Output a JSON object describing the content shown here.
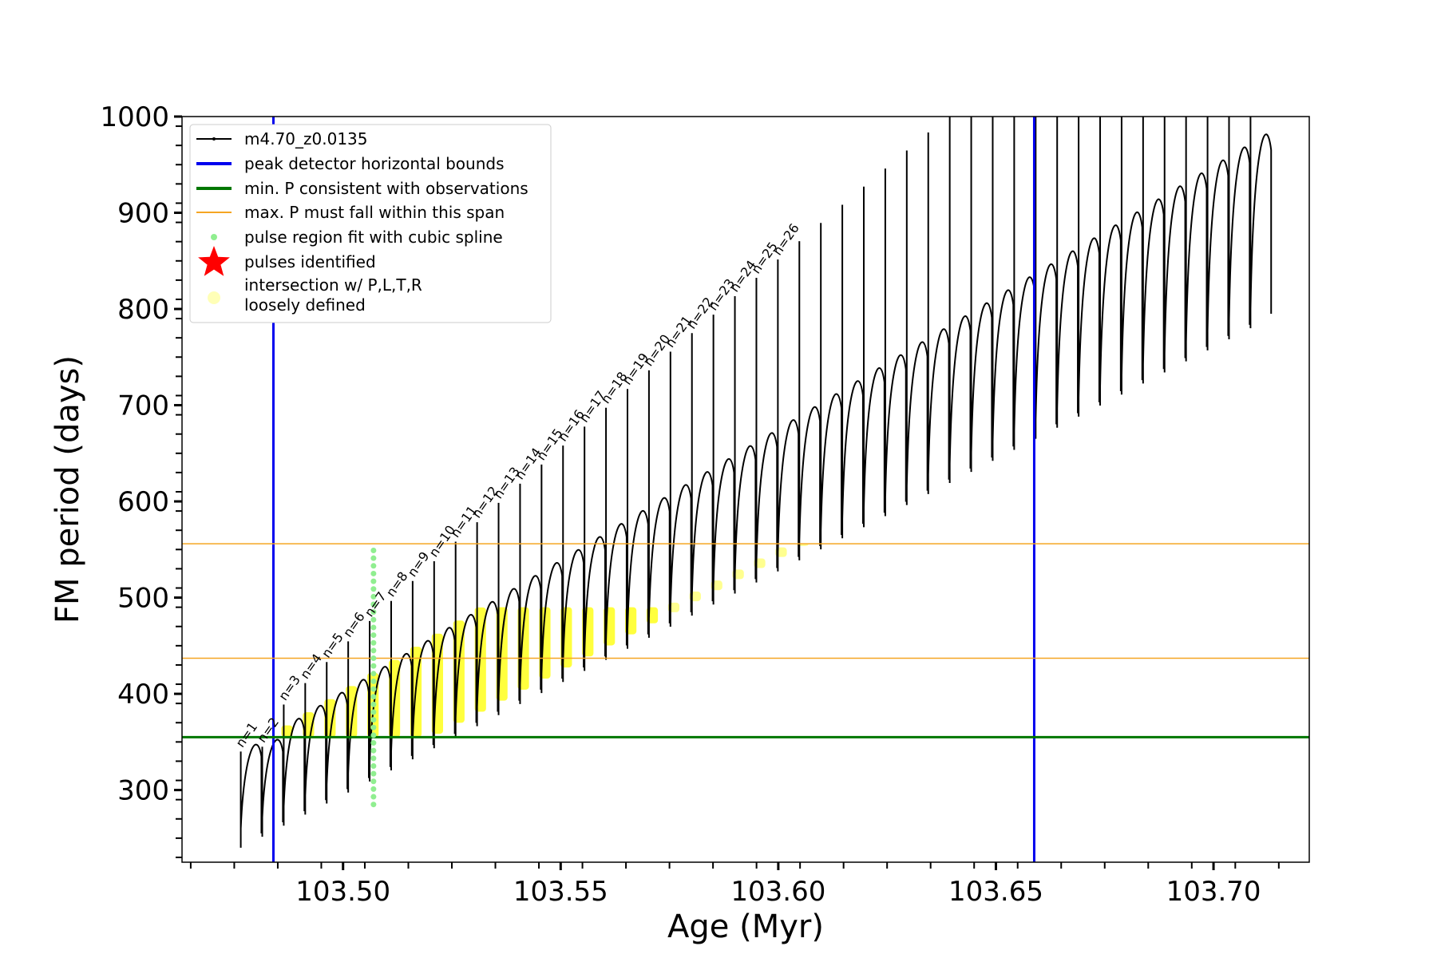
{
  "chart_data": {
    "type": "line",
    "xlabel": "Age (Myr)",
    "ylabel": "FM period (days)",
    "xlim": [
      103.463,
      103.722
    ],
    "ylim": [
      225,
      1000
    ],
    "x_ticks": [
      103.5,
      103.55,
      103.6,
      103.65,
      103.7
    ],
    "x_tick_labels": [
      "103.50",
      "103.55",
      "103.60",
      "103.65",
      "103.70"
    ],
    "y_ticks": [
      300,
      400,
      500,
      600,
      700,
      800,
      900,
      1000
    ],
    "y_tick_labels": [
      "300",
      "400",
      "500",
      "600",
      "700",
      "800",
      "900",
      "1000"
    ],
    "grid": false,
    "legend_position": "top-left",
    "series": [
      {
        "name": "m4.70_z0.0135",
        "type": "line",
        "color": "#000000",
        "description_pulses": {
          "start_age": 103.4765,
          "end_age": 103.7085,
          "count": 48,
          "peak_period_start": 340,
          "peak_period_end": 1000,
          "min_period_start": 240,
          "min_period_end": 780
        }
      },
      {
        "name": "peak detector horizontal bounds",
        "type": "vline",
        "color": "#0000ee",
        "x": [
          103.484,
          103.6588
        ]
      },
      {
        "name": "min. P consistent with observations",
        "type": "hline",
        "color": "#007700",
        "y": 355
      },
      {
        "name": "max. P must fall within this span",
        "type": "hline",
        "color": "#f5a623",
        "y": [
          437,
          556
        ]
      },
      {
        "name": "pulse region fit with cubic spline",
        "type": "scatter",
        "color": "#90ee90",
        "x": 103.507,
        "y_range": [
          285,
          550
        ]
      },
      {
        "name": "pulses identified",
        "type": "scatter",
        "marker": "star",
        "color": "#ff0000"
      },
      {
        "name": "intersection w/ P,L,T,R\nloosely defined",
        "type": "scatter",
        "color": "#ffff00"
      }
    ],
    "annotations": [
      "n=1",
      "n=2",
      "n=3",
      "n=4",
      "n=5",
      "n=6",
      "n=7",
      "n=8",
      "n=9",
      "n=10",
      "n=11",
      "n=12",
      "n=13",
      "n=14",
      "n=15",
      "n=16",
      "n=17",
      "n=18",
      "n=19",
      "n=20",
      "n=21",
      "n=22",
      "n=23",
      "n=24",
      "n=25",
      "n=26"
    ]
  },
  "legend": {
    "items": [
      {
        "label": "m4.70_z0.0135",
        "icon": "black-line-dot-icon"
      },
      {
        "label": "peak detector horizontal bounds",
        "icon": "blue-line-icon"
      },
      {
        "label": "min. P consistent with observations",
        "icon": "green-line-icon"
      },
      {
        "label": "max. P must fall within this span",
        "icon": "orange-line-icon"
      },
      {
        "label": "pulse region fit with cubic spline",
        "icon": "green-dot-icon"
      },
      {
        "label": "pulses identified",
        "icon": "red-star-icon"
      },
      {
        "label_line1": "intersection w/ P,L,T,R",
        "label_line2": "loosely defined",
        "icon": "yellow-dot-icon"
      }
    ]
  }
}
